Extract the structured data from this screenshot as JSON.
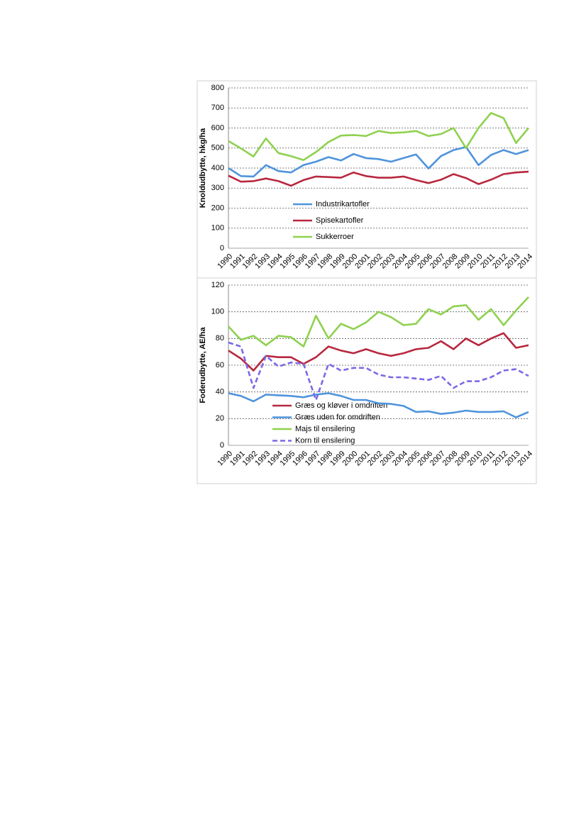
{
  "chart_data": [
    {
      "type": "line",
      "ylabel": "Knoldudbytte, hkg/ha",
      "categories": [
        "1990",
        "1991",
        "1992",
        "1993",
        "1994",
        "1995",
        "1996",
        "1997",
        "1998",
        "1999",
        "2000",
        "2001",
        "2002",
        "2003",
        "2004",
        "2005",
        "2006",
        "2007",
        "2008",
        "2009",
        "2010",
        "2011",
        "2012",
        "2013",
        "2014"
      ],
      "ylim": [
        0,
        800
      ],
      "yticks": [
        0,
        100,
        200,
        300,
        400,
        500,
        600,
        700,
        800
      ],
      "grid": true,
      "legend": "lower left",
      "series": [
        {
          "name": "Industrikartofler",
          "color": "#4f94dc",
          "values": [
            400,
            360,
            358,
            415,
            385,
            378,
            415,
            432,
            455,
            438,
            470,
            450,
            445,
            432,
            450,
            468,
            398,
            460,
            490,
            505,
            415,
            465,
            490,
            470,
            490
          ]
        },
        {
          "name": "Spisekartofler",
          "color": "#b8283f",
          "values": [
            362,
            332,
            335,
            348,
            335,
            312,
            340,
            358,
            355,
            352,
            378,
            360,
            352,
            352,
            358,
            340,
            325,
            342,
            370,
            350,
            320,
            342,
            370,
            378,
            382
          ]
        },
        {
          "name": "Sukkerroer",
          "color": "#8fd14f",
          "values": [
            535,
            498,
            458,
            548,
            475,
            460,
            440,
            480,
            530,
            562,
            565,
            560,
            585,
            575,
            578,
            585,
            560,
            570,
            600,
            500,
            600,
            675,
            650,
            525,
            600
          ]
        }
      ]
    },
    {
      "type": "line",
      "ylabel": "Foderudbytte, AE/ha",
      "categories": [
        "1990",
        "1991",
        "1992",
        "1993",
        "1994",
        "1995",
        "1996",
        "1997",
        "1998",
        "1999",
        "2000",
        "2001",
        "2002",
        "2003",
        "2004",
        "2005",
        "2006",
        "2007",
        "2008",
        "2009",
        "2010",
        "2011",
        "2012",
        "2013",
        "2014"
      ],
      "ylim": [
        0,
        120
      ],
      "yticks": [
        0,
        20,
        40,
        60,
        80,
        100,
        120
      ],
      "grid": true,
      "legend": "lower left",
      "series": [
        {
          "name": "Græs og kløver i omdriften",
          "color": "#b8283f",
          "values": [
            71,
            65,
            56,
            67,
            66,
            66,
            61,
            66,
            74,
            71,
            69,
            72,
            69,
            67,
            69,
            72,
            73,
            78,
            72,
            80,
            75,
            80,
            84,
            73,
            75
          ]
        },
        {
          "name": "Græs uden for omdriften",
          "color": "#4f94dc",
          "values": [
            39,
            37,
            33,
            38,
            37.5,
            37,
            36,
            38,
            39,
            37,
            34,
            34,
            31.5,
            31,
            29.5,
            25,
            25.5,
            23.5,
            24.5,
            26,
            25,
            25,
            25.5,
            21,
            25
          ]
        },
        {
          "name": "Majs til ensilering",
          "color": "#8fd14f",
          "values": [
            89,
            79,
            82,
            75,
            82,
            81,
            74,
            97,
            80,
            91,
            87,
            92,
            100,
            96,
            90,
            91,
            102,
            98,
            104,
            105,
            94,
            102,
            90,
            101,
            111
          ]
        },
        {
          "name": "Korn til ensilering",
          "color": "#7b68e6",
          "dashed": true,
          "values": [
            77,
            74,
            43,
            67,
            59,
            62,
            61,
            34,
            61,
            56,
            58,
            58,
            53,
            51,
            51,
            50,
            49,
            52,
            43,
            48,
            48,
            51,
            56,
            57,
            52
          ]
        }
      ]
    }
  ]
}
